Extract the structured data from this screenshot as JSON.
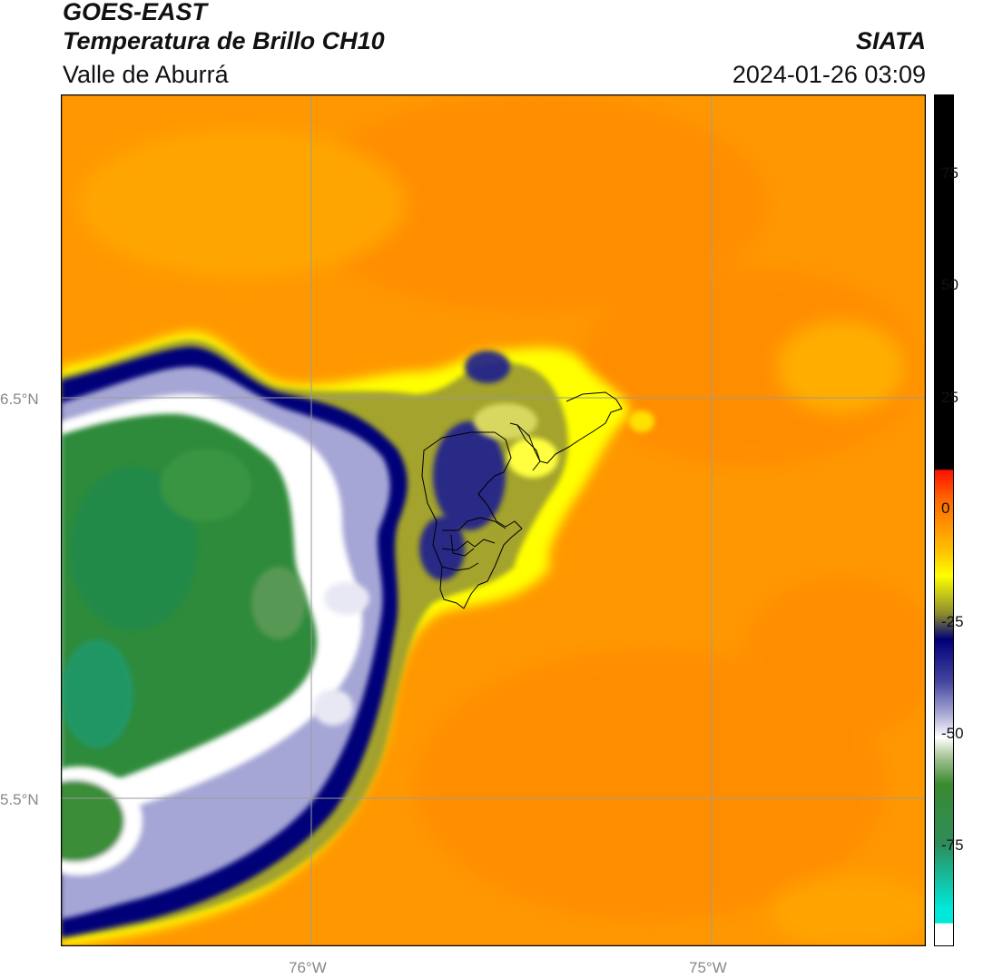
{
  "header": {
    "line1": "GOES-EAST",
    "line2": "Temperatura de Brillo CH10",
    "subtitle": "Valle de Aburrá",
    "organization": "SIATA",
    "datetime": "2024-01-26 03:09"
  },
  "map": {
    "lat_labels": [
      "6.5°N",
      "5.5°N"
    ],
    "lon_labels": [
      "76°W",
      "75°W"
    ],
    "colors": {
      "warm_orange": "#ff9800",
      "orange_dark": "#ff8c00",
      "yellow": "#ffff00",
      "olive": "#8c8c2a",
      "navy": "#000078",
      "lavender": "#a0a0d0",
      "white": "#ffffff",
      "green": "#2e8b3a",
      "cyan": "#00e0e0",
      "red": "#ff2000",
      "black": "#000000",
      "gridline": "#9a9a9a",
      "boundary": "#000000"
    }
  },
  "colorbar": {
    "ticks": [
      "75",
      "50",
      "25",
      "0",
      "-25",
      "-50",
      "-75"
    ],
    "range": [
      -95,
      92
    ]
  }
}
